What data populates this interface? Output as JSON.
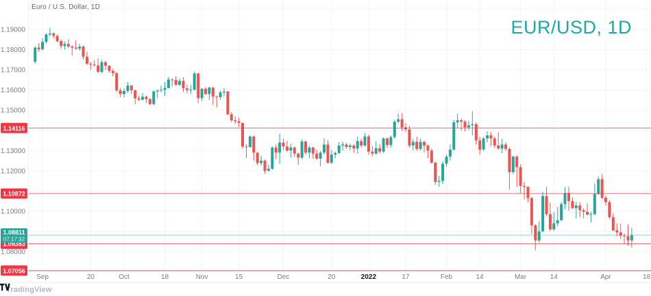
{
  "header": {
    "symbol_title": "Euro / U.S. Dollar, 1D",
    "watermark": "EUR/USD, 1D"
  },
  "footer": {
    "logo_text": "TradingView"
  },
  "chart_data": {
    "type": "candlestick",
    "title": "Euro / U.S. Dollar, 1D",
    "symbol": "EUR/USD",
    "timeframe": "1D",
    "legend_position": "top-left",
    "grid": true,
    "ylim": [
      1.0675,
      1.2046
    ],
    "y_ticks": [
      {
        "price": 1.19,
        "label": "1.19000"
      },
      {
        "price": 1.18,
        "label": "1.18000"
      },
      {
        "price": 1.17,
        "label": "1.17000"
      },
      {
        "price": 1.16,
        "label": "1.16000"
      },
      {
        "price": 1.15,
        "label": "1.15000"
      },
      {
        "price": 1.14,
        "label": "1.14000"
      },
      {
        "price": 1.13,
        "label": "1.13000"
      },
      {
        "price": 1.12,
        "label": "1.12000"
      },
      {
        "price": 1.11,
        "label": "1.11000"
      },
      {
        "price": 1.1,
        "label": "1.10000"
      },
      {
        "price": 1.09,
        "label": "1.09000"
      },
      {
        "price": 1.08,
        "label": "1.08000"
      },
      {
        "price": 1.07,
        "label": "1.07000"
      }
    ],
    "x_ticks": [
      {
        "label": "Sep",
        "index": 2,
        "bold": false
      },
      {
        "label": "20",
        "index": 15,
        "bold": false
      },
      {
        "label": "Oct",
        "index": 24,
        "bold": false
      },
      {
        "label": "18",
        "index": 35,
        "bold": false
      },
      {
        "label": "Nov",
        "index": 45,
        "bold": false
      },
      {
        "label": "15",
        "index": 55,
        "bold": false
      },
      {
        "label": "Dec",
        "index": 67,
        "bold": false
      },
      {
        "label": "20",
        "index": 80,
        "bold": false
      },
      {
        "label": "2022",
        "index": 90,
        "bold": true
      },
      {
        "label": "17",
        "index": 100,
        "bold": false
      },
      {
        "label": "Feb",
        "index": 111,
        "bold": false
      },
      {
        "label": "14",
        "index": 120,
        "bold": false
      },
      {
        "label": "Mar",
        "index": 131,
        "bold": false
      },
      {
        "label": "14",
        "index": 140,
        "bold": false
      },
      {
        "label": "Apr",
        "index": 154,
        "bold": false
      },
      {
        "label": "18",
        "index": 165,
        "bold": false
      }
    ],
    "horizontal_lines": [
      {
        "price": 1.14116,
        "label": "1.14116",
        "color": "#f23645"
      },
      {
        "price": 1.10872,
        "label": "1.10872",
        "color": "#f23645"
      },
      {
        "price": 1.08383,
        "label": "1.08383",
        "color": "#f23645"
      },
      {
        "price": 1.07056,
        "label": "1.07056",
        "color": "#f23645"
      }
    ],
    "last_price": {
      "value": 1.08811,
      "label": "1.08811",
      "countdown": "07:17:32",
      "color": "#26a69a"
    },
    "colors": {
      "up": "#26a69a",
      "down": "#ef5350",
      "grid": "#f0f3f7",
      "axis_border": "#e0e3eb",
      "axis_text": "#787b86",
      "axis_text_bold": "#131722",
      "alert_line": "#f23645",
      "watermark": "#1ea89e"
    },
    "candles": [
      [
        1.174,
        1.1815,
        1.173,
        1.181
      ],
      [
        1.181,
        1.1832,
        1.179,
        1.1802
      ],
      [
        1.1802,
        1.1857,
        1.1795,
        1.1838
      ],
      [
        1.1838,
        1.188,
        1.183,
        1.1875
      ],
      [
        1.1875,
        1.1909,
        1.1865,
        1.188
      ],
      [
        1.188,
        1.1885,
        1.1855,
        1.1868
      ],
      [
        1.1868,
        1.1875,
        1.1835,
        1.1842
      ],
      [
        1.1842,
        1.185,
        1.1805,
        1.1818
      ],
      [
        1.1818,
        1.184,
        1.18,
        1.1828
      ],
      [
        1.1828,
        1.1852,
        1.181,
        1.1815
      ],
      [
        1.1815,
        1.1822,
        1.177,
        1.181
      ],
      [
        1.181,
        1.1846,
        1.18,
        1.1805
      ],
      [
        1.1805,
        1.183,
        1.1795,
        1.1815
      ],
      [
        1.1815,
        1.182,
        1.175,
        1.1765
      ],
      [
        1.1765,
        1.179,
        1.1725,
        1.173
      ],
      [
        1.173,
        1.1738,
        1.17,
        1.1726
      ],
      [
        1.1726,
        1.1749,
        1.1715,
        1.1722
      ],
      [
        1.1722,
        1.1756,
        1.1685,
        1.169
      ],
      [
        1.169,
        1.175,
        1.1683,
        1.1738
      ],
      [
        1.1738,
        1.1745,
        1.17,
        1.172
      ],
      [
        1.172,
        1.1722,
        1.1685,
        1.1695
      ],
      [
        1.1695,
        1.1705,
        1.1668,
        1.1683
      ],
      [
        1.1683,
        1.169,
        1.159,
        1.1598
      ],
      [
        1.1598,
        1.161,
        1.1563,
        1.158
      ],
      [
        1.158,
        1.1608,
        1.1563,
        1.1595
      ],
      [
        1.1595,
        1.164,
        1.1585,
        1.1622
      ],
      [
        1.1622,
        1.1625,
        1.158,
        1.1598
      ],
      [
        1.1598,
        1.1602,
        1.1529,
        1.1558
      ],
      [
        1.1558,
        1.1572,
        1.1546,
        1.1552
      ],
      [
        1.1552,
        1.1586,
        1.1548,
        1.1567
      ],
      [
        1.1567,
        1.1573,
        1.1535,
        1.1555
      ],
      [
        1.1555,
        1.156,
        1.1525,
        1.153
      ],
      [
        1.153,
        1.1598,
        1.1525,
        1.1593
      ],
      [
        1.1593,
        1.16,
        1.156,
        1.1598
      ],
      [
        1.1598,
        1.1622,
        1.1588,
        1.1601
      ],
      [
        1.1601,
        1.164,
        1.1572,
        1.161
      ],
      [
        1.161,
        1.1665,
        1.1608,
        1.1652
      ],
      [
        1.1652,
        1.1658,
        1.1617,
        1.165
      ],
      [
        1.165,
        1.1668,
        1.1623,
        1.1625
      ],
      [
        1.1625,
        1.1657,
        1.162,
        1.1645
      ],
      [
        1.1645,
        1.1663,
        1.159,
        1.1608
      ],
      [
        1.1608,
        1.1626,
        1.1585,
        1.16
      ],
      [
        1.16,
        1.1625,
        1.1582,
        1.1601
      ],
      [
        1.1601,
        1.1692,
        1.1598,
        1.1682
      ],
      [
        1.1682,
        1.1686,
        1.1535,
        1.156
      ],
      [
        1.156,
        1.1609,
        1.1545,
        1.1606
      ],
      [
        1.1606,
        1.1614,
        1.1575,
        1.158
      ],
      [
        1.158,
        1.1617,
        1.155,
        1.1612
      ],
      [
        1.1612,
        1.1615,
        1.1527,
        1.1567
      ],
      [
        1.1567,
        1.1573,
        1.1513,
        1.1565
      ],
      [
        1.1565,
        1.1595,
        1.1552,
        1.1588
      ],
      [
        1.1588,
        1.1609,
        1.1567,
        1.1592
      ],
      [
        1.1592,
        1.1595,
        1.1475,
        1.148
      ],
      [
        1.148,
        1.149,
        1.1441,
        1.145
      ],
      [
        1.145,
        1.147,
        1.1432,
        1.1445
      ],
      [
        1.1445,
        1.1464,
        1.1417,
        1.1437
      ],
      [
        1.1437,
        1.1438,
        1.1309,
        1.132
      ],
      [
        1.132,
        1.1332,
        1.1263,
        1.1318
      ],
      [
        1.1318,
        1.1374,
        1.1314,
        1.137
      ],
      [
        1.137,
        1.1374,
        1.125,
        1.129
      ],
      [
        1.129,
        1.1291,
        1.1226,
        1.1238
      ],
      [
        1.1238,
        1.1275,
        1.1225,
        1.125
      ],
      [
        1.125,
        1.1255,
        1.1186,
        1.12
      ],
      [
        1.12,
        1.123,
        1.1195,
        1.121
      ],
      [
        1.121,
        1.1322,
        1.1205,
        1.1315
      ],
      [
        1.1315,
        1.133,
        1.1258,
        1.129
      ],
      [
        1.129,
        1.1383,
        1.1235,
        1.134
      ],
      [
        1.134,
        1.136,
        1.1302,
        1.132
      ],
      [
        1.132,
        1.1348,
        1.1293,
        1.13
      ],
      [
        1.13,
        1.1334,
        1.1266,
        1.1315
      ],
      [
        1.1315,
        1.132,
        1.1267,
        1.1285
      ],
      [
        1.1285,
        1.129,
        1.1228,
        1.1265
      ],
      [
        1.1265,
        1.1355,
        1.1258,
        1.1345
      ],
      [
        1.1345,
        1.135,
        1.128,
        1.129
      ],
      [
        1.129,
        1.1325,
        1.1262,
        1.1315
      ],
      [
        1.1315,
        1.132,
        1.126,
        1.1285
      ],
      [
        1.1285,
        1.1305,
        1.1255,
        1.126
      ],
      [
        1.126,
        1.1298,
        1.1222,
        1.129
      ],
      [
        1.129,
        1.136,
        1.128,
        1.133
      ],
      [
        1.133,
        1.135,
        1.1236,
        1.124
      ],
      [
        1.124,
        1.1303,
        1.1234,
        1.128
      ],
      [
        1.128,
        1.1295,
        1.1262,
        1.1288
      ],
      [
        1.1288,
        1.1342,
        1.1282,
        1.1325
      ],
      [
        1.1325,
        1.1344,
        1.13,
        1.133
      ],
      [
        1.133,
        1.1337,
        1.1308,
        1.1318
      ],
      [
        1.1318,
        1.1333,
        1.1304,
        1.1325
      ],
      [
        1.1325,
        1.1332,
        1.1289,
        1.131
      ],
      [
        1.131,
        1.1369,
        1.1285,
        1.1347
      ],
      [
        1.1347,
        1.136,
        1.1315,
        1.1325
      ],
      [
        1.1325,
        1.1386,
        1.132,
        1.137
      ],
      [
        1.137,
        1.1379,
        1.1279,
        1.1295
      ],
      [
        1.1295,
        1.1323,
        1.1272,
        1.1285
      ],
      [
        1.1285,
        1.1347,
        1.128,
        1.1312
      ],
      [
        1.1312,
        1.1332,
        1.1285,
        1.1295
      ],
      [
        1.1295,
        1.1365,
        1.1288,
        1.136
      ],
      [
        1.136,
        1.1363,
        1.1313,
        1.1328
      ],
      [
        1.1328,
        1.1374,
        1.1315,
        1.1367
      ],
      [
        1.1367,
        1.1453,
        1.136,
        1.1443
      ],
      [
        1.1443,
        1.1483,
        1.1435,
        1.1455
      ],
      [
        1.1455,
        1.1484,
        1.1398,
        1.1415
      ],
      [
        1.1415,
        1.1435,
        1.1392,
        1.1405
      ],
      [
        1.1405,
        1.1422,
        1.1314,
        1.1325
      ],
      [
        1.1325,
        1.1357,
        1.1302,
        1.1343
      ],
      [
        1.1343,
        1.1369,
        1.13,
        1.1308
      ],
      [
        1.1308,
        1.136,
        1.13,
        1.1343
      ],
      [
        1.1343,
        1.1349,
        1.129,
        1.1325
      ],
      [
        1.1325,
        1.133,
        1.1263,
        1.13
      ],
      [
        1.13,
        1.131,
        1.1235,
        1.124
      ],
      [
        1.124,
        1.1245,
        1.1131,
        1.1145
      ],
      [
        1.1145,
        1.1175,
        1.1121,
        1.115
      ],
      [
        1.115,
        1.1248,
        1.1135,
        1.1235
      ],
      [
        1.1235,
        1.1279,
        1.122,
        1.127
      ],
      [
        1.127,
        1.133,
        1.125,
        1.1305
      ],
      [
        1.1305,
        1.1452,
        1.13,
        1.144
      ],
      [
        1.144,
        1.1483,
        1.1411,
        1.145
      ],
      [
        1.145,
        1.1459,
        1.1398,
        1.1443
      ],
      [
        1.1443,
        1.1449,
        1.1395,
        1.1415
      ],
      [
        1.1415,
        1.1448,
        1.1403,
        1.1425
      ],
      [
        1.1425,
        1.1495,
        1.1375,
        1.143
      ],
      [
        1.143,
        1.144,
        1.133,
        1.135
      ],
      [
        1.135,
        1.1369,
        1.128,
        1.1305
      ],
      [
        1.1305,
        1.1368,
        1.13,
        1.136
      ],
      [
        1.136,
        1.1395,
        1.134,
        1.1375
      ],
      [
        1.1375,
        1.1392,
        1.1324,
        1.136
      ],
      [
        1.136,
        1.137,
        1.1312,
        1.1325
      ],
      [
        1.1325,
        1.139,
        1.1305,
        1.131
      ],
      [
        1.131,
        1.1359,
        1.1287,
        1.133
      ],
      [
        1.133,
        1.1342,
        1.1298,
        1.1308
      ],
      [
        1.1308,
        1.1317,
        1.1106,
        1.1193
      ],
      [
        1.1193,
        1.1274,
        1.1184,
        1.127
      ],
      [
        1.127,
        1.1275,
        1.112,
        1.1218
      ],
      [
        1.1218,
        1.1232,
        1.109,
        1.1125
      ],
      [
        1.1125,
        1.1145,
        1.1058,
        1.112
      ],
      [
        1.112,
        1.1123,
        1.1045,
        1.1065
      ],
      [
        1.1065,
        1.107,
        1.0886,
        1.093
      ],
      [
        1.093,
        1.0935,
        1.0806,
        1.0855
      ],
      [
        1.0855,
        1.095,
        1.0845,
        1.09
      ],
      [
        1.09,
        1.1095,
        1.0895,
        1.1075
      ],
      [
        1.1075,
        1.112,
        1.0975,
        1.0985
      ],
      [
        1.0985,
        1.1043,
        1.09,
        1.091
      ],
      [
        1.091,
        1.0995,
        1.0902,
        1.094
      ],
      [
        1.094,
        1.102,
        1.0925,
        1.0955
      ],
      [
        1.0955,
        1.1045,
        1.095,
        1.1035
      ],
      [
        1.1035,
        1.1119,
        1.101,
        1.109
      ],
      [
        1.109,
        1.112,
        1.1003,
        1.105
      ],
      [
        1.105,
        1.1069,
        1.1009,
        1.1015
      ],
      [
        1.1015,
        1.1046,
        1.0963,
        1.1028
      ],
      [
        1.1028,
        1.1045,
        1.097,
        1.1005
      ],
      [
        1.1005,
        1.1014,
        1.0965,
        1.0997
      ],
      [
        1.0997,
        1.1039,
        1.098,
        1.0983
      ],
      [
        1.0983,
        1.0997,
        1.0944,
        1.0985
      ],
      [
        1.0985,
        1.1137,
        1.098,
        1.1085
      ],
      [
        1.1085,
        1.1171,
        1.108,
        1.1158
      ],
      [
        1.1158,
        1.1184,
        1.106,
        1.1067
      ],
      [
        1.1067,
        1.1077,
        1.1027,
        1.1045
      ],
      [
        1.1045,
        1.1055,
        1.096,
        1.097
      ],
      [
        1.097,
        1.099,
        1.09,
        1.0905
      ],
      [
        1.0905,
        1.094,
        1.0875,
        1.0895
      ],
      [
        1.0895,
        1.0938,
        1.0862,
        1.0878
      ],
      [
        1.0878,
        1.089,
        1.0837,
        1.0876
      ],
      [
        1.0876,
        1.0934,
        1.083,
        1.0855
      ],
      [
        1.0855,
        1.0917,
        1.082,
        1.0881
      ]
    ]
  }
}
